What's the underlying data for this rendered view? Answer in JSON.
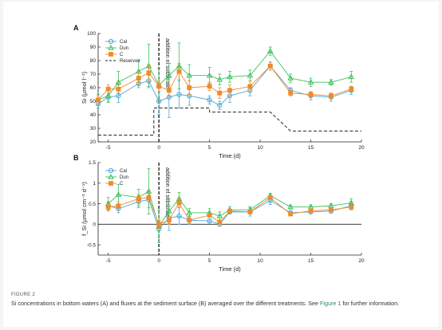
{
  "colors": {
    "Cal": "#4aa7dc",
    "Dun": "#3cc15a",
    "C": "#f18a2a",
    "reservoir": "#222222"
  },
  "caption": {
    "label": "FIGURE 2",
    "text_before": "Si concentrations in bottom waters (A) and fluxes at the sediment surface (B) averaged over the different treatments. See ",
    "link": "Figure 1",
    "text_after": " for further information."
  },
  "chart_data": [
    {
      "panel": "A",
      "type": "line",
      "xlabel": "Time (d)",
      "ylabel": "Si (µmol l⁻¹)",
      "xlim": [
        -6,
        20
      ],
      "ylim": [
        20,
        100
      ],
      "xticks": [
        -5,
        0,
        5,
        10,
        15,
        20
      ],
      "yticks": [
        20,
        30,
        40,
        50,
        60,
        70,
        80,
        90,
        100
      ],
      "vline": {
        "x": 0,
        "label": "addition of substrate"
      },
      "legend": {
        "position": "top-left",
        "entries": [
          "Cal",
          "Dun",
          "C",
          "Reservoir"
        ]
      },
      "series": [
        {
          "name": "Cal",
          "marker": "circle",
          "x": [
            -6,
            -5,
            -4,
            -2,
            -1,
            0,
            1,
            2,
            3,
            5,
            6,
            7,
            9,
            11,
            13,
            15,
            17,
            19
          ],
          "y": [
            48,
            53,
            54,
            63,
            65,
            50,
            53,
            55,
            54,
            51,
            47,
            54,
            58,
            76,
            58,
            54,
            53,
            58
          ],
          "err": [
            3,
            3,
            5,
            3,
            4,
            10,
            15,
            10,
            7,
            3,
            3,
            5,
            4,
            3,
            2,
            3,
            3,
            3
          ]
        },
        {
          "name": "Dun",
          "marker": "triangle",
          "x": [
            -6,
            -5,
            -4,
            -2,
            -1,
            0,
            1,
            2,
            3,
            5,
            6,
            7,
            9,
            11,
            13,
            15,
            17,
            19
          ],
          "y": [
            51,
            54,
            64,
            72,
            76,
            62,
            69,
            76,
            69,
            69,
            66,
            68,
            69,
            87,
            67,
            64,
            64,
            68
          ],
          "err": [
            4,
            5,
            8,
            8,
            16,
            12,
            9,
            17,
            8,
            6,
            4,
            4,
            4,
            3,
            3,
            3,
            2,
            4
          ]
        },
        {
          "name": "C",
          "marker": "square",
          "x": [
            -6,
            -5,
            -4,
            -2,
            -1,
            0,
            1,
            2,
            3,
            5,
            6,
            7,
            9,
            11,
            13,
            15,
            17,
            19
          ],
          "y": [
            51,
            59,
            59,
            67,
            71,
            61,
            58,
            72,
            60,
            61,
            56,
            58,
            61,
            76,
            56,
            55,
            54,
            59
          ],
          "err": [
            3,
            3,
            3,
            5,
            6,
            4,
            4,
            6,
            5,
            3,
            4,
            4,
            4,
            3,
            2,
            2,
            2,
            2
          ]
        }
      ],
      "reservoir": {
        "name": "Reservoir",
        "x": [
          -6,
          -0.5,
          -0.5,
          5,
          5,
          11,
          13,
          20
        ],
        "y": [
          25,
          25,
          45,
          45,
          42,
          42,
          28,
          28
        ]
      }
    },
    {
      "panel": "B",
      "type": "line",
      "xlabel": "Time (d)",
      "ylabel": "f_Si (µmol cm⁻² d⁻¹)",
      "xlim": [
        -6,
        20
      ],
      "ylim": [
        -0.75,
        1.5
      ],
      "xticks": [
        -5,
        0,
        5,
        10,
        15,
        20
      ],
      "yticks": [
        -0.5,
        0,
        0.5,
        1,
        1.5
      ],
      "ytick_labels": [
        "-0.5",
        "0",
        "0.5",
        "1",
        "1.5"
      ],
      "hline": 0,
      "vline": {
        "x": 0,
        "label": "addition of substrate"
      },
      "legend": {
        "position": "top-left",
        "entries": [
          "Cal",
          "Dun",
          "C"
        ]
      },
      "series": [
        {
          "name": "Cal",
          "marker": "circle",
          "x": [
            -5,
            -4,
            -2,
            -1,
            0,
            1,
            2,
            3,
            5,
            6,
            7,
            9,
            11,
            13,
            15,
            17,
            19
          ],
          "y": [
            0.45,
            0.38,
            0.55,
            0.6,
            -0.12,
            0.15,
            0.2,
            0.1,
            0.08,
            0.0,
            0.3,
            0.3,
            0.58,
            0.28,
            0.3,
            0.32,
            0.45
          ],
          "err": [
            0.1,
            0.1,
            0.15,
            0.2,
            0.2,
            0.3,
            0.2,
            0.1,
            0.05,
            0.05,
            0.05,
            0.1,
            0.1,
            0.05,
            0.05,
            0.05,
            0.1
          ]
        },
        {
          "name": "Dun",
          "marker": "triangle",
          "x": [
            -5,
            -4,
            -2,
            -1,
            0,
            1,
            2,
            3,
            5,
            6,
            7,
            9,
            11,
            13,
            15,
            17,
            19
          ],
          "y": [
            0.5,
            0.72,
            0.65,
            0.8,
            -0.05,
            0.32,
            0.62,
            0.28,
            0.28,
            0.2,
            0.35,
            0.35,
            0.7,
            0.42,
            0.42,
            0.45,
            0.52
          ],
          "err": [
            0.15,
            0.25,
            0.2,
            0.55,
            0.4,
            0.3,
            0.15,
            0.1,
            0.1,
            0.1,
            0.08,
            0.08,
            0.05,
            0.05,
            0.05,
            0.05,
            0.1
          ]
        },
        {
          "name": "C",
          "marker": "square",
          "x": [
            -5,
            -4,
            -2,
            -1,
            0,
            1,
            2,
            3,
            5,
            6,
            7,
            9,
            11,
            13,
            15,
            17,
            19
          ],
          "y": [
            0.42,
            0.45,
            0.62,
            0.65,
            0.0,
            0.1,
            0.52,
            0.1,
            0.22,
            0.05,
            0.32,
            0.3,
            0.65,
            0.25,
            0.33,
            0.35,
            0.42
          ],
          "err": [
            0.1,
            0.1,
            0.1,
            0.1,
            0.1,
            0.1,
            0.1,
            0.08,
            0.05,
            0.05,
            0.05,
            0.05,
            0.05,
            0.03,
            0.03,
            0.03,
            0.05
          ]
        }
      ]
    }
  ]
}
